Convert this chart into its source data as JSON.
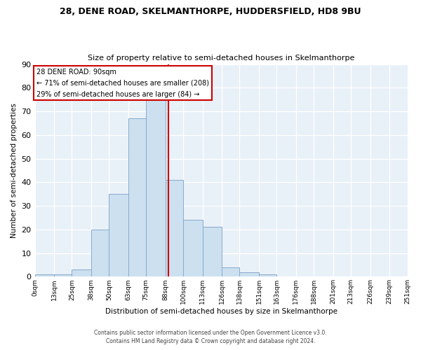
{
  "title": "28, DENE ROAD, SKELMANTHORPE, HUDDERSFIELD, HD8 9BU",
  "subtitle": "Size of property relative to semi-detached houses in Skelmanthorpe",
  "xlabel": "Distribution of semi-detached houses by size in Skelmanthorpe",
  "ylabel": "Number of semi-detached properties",
  "bin_edges": [
    0,
    13,
    25,
    38,
    50,
    63,
    75,
    88,
    100,
    113,
    126,
    138,
    151,
    163,
    176,
    188,
    201,
    213,
    226,
    239,
    251
  ],
  "bin_labels": [
    "0sqm",
    "13sqm",
    "25sqm",
    "38sqm",
    "50sqm",
    "63sqm",
    "75sqm",
    "88sqm",
    "100sqm",
    "113sqm",
    "126sqm",
    "138sqm",
    "151sqm",
    "163sqm",
    "176sqm",
    "188sqm",
    "201sqm",
    "213sqm",
    "226sqm",
    "239sqm",
    "251sqm"
  ],
  "counts": [
    1,
    1,
    3,
    20,
    35,
    67,
    75,
    41,
    24,
    21,
    4,
    2,
    1,
    0,
    0,
    0,
    0,
    0,
    0,
    0
  ],
  "bar_color": "#cce0f0",
  "bar_edge_color": "#88aacc",
  "property_value": 90,
  "vline_color": "#cc0000",
  "annotation_title": "28 DENE ROAD: 90sqm",
  "annotation_line1": "← 71% of semi-detached houses are smaller (208)",
  "annotation_line2": "29% of semi-detached houses are larger (84) →",
  "annotation_box_edge_color": "#cc0000",
  "annotation_box_face_color": "#ffffff",
  "ylim": [
    0,
    90
  ],
  "yticks": [
    0,
    10,
    20,
    30,
    40,
    50,
    60,
    70,
    80,
    90
  ],
  "footer1": "Contains HM Land Registry data © Crown copyright and database right 2024.",
  "footer2": "Contains public sector information licensed under the Open Government Licence v3.0.",
  "background_color": "#ffffff",
  "plot_bg_color": "#e8f0f8",
  "grid_color": "#ffffff"
}
